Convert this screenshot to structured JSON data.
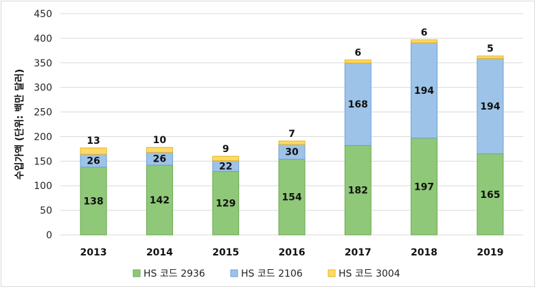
{
  "chart_data": {
    "type": "bar",
    "stacked": true,
    "categories": [
      "2013",
      "2014",
      "2015",
      "2016",
      "2017",
      "2018",
      "2019"
    ],
    "series": [
      {
        "name": "HS 코드 2936",
        "values": [
          138,
          142,
          129,
          154,
          182,
          197,
          165
        ],
        "color": "#8fc878",
        "edge": "#6aa84f"
      },
      {
        "name": "HS 코드 2106",
        "values": [
          26,
          26,
          22,
          30,
          168,
          194,
          194
        ],
        "color": "#9ec3e8",
        "edge": "#6d9fd6"
      },
      {
        "name": "HS 코드 3004",
        "values": [
          13,
          10,
          9,
          7,
          6,
          6,
          5
        ],
        "color": "#ffd966",
        "edge": "#e6b422"
      }
    ],
    "ylabel": "수입가액 (단위: 백만 달러)",
    "xlabel": "",
    "title": "",
    "ylim": [
      0,
      450
    ],
    "yticks": [
      0,
      50,
      100,
      150,
      200,
      250,
      300,
      350,
      400,
      450
    ],
    "grid": true,
    "legend": "bottom"
  }
}
